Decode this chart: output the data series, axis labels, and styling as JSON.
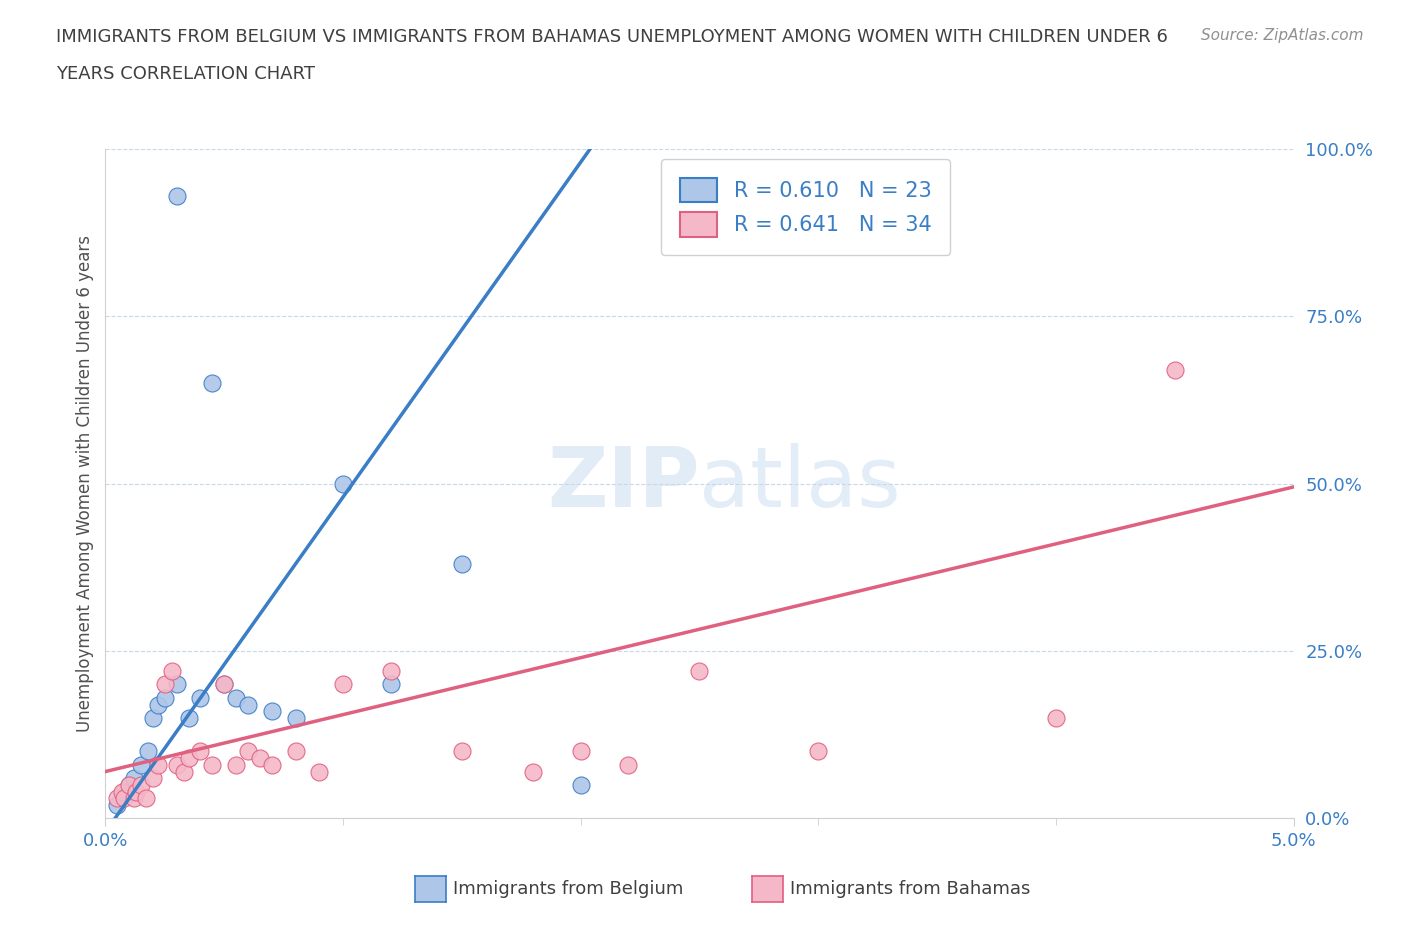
{
  "title_line1": "IMMIGRANTS FROM BELGIUM VS IMMIGRANTS FROM BAHAMAS UNEMPLOYMENT AMONG WOMEN WITH CHILDREN UNDER 6",
  "title_line2": "YEARS CORRELATION CHART",
  "source": "Source: ZipAtlas.com",
  "ylabel": "Unemployment Among Women with Children Under 6 years",
  "xlim": [
    0.0,
    5.0
  ],
  "ylim": [
    0.0,
    100.0
  ],
  "yticks": [
    0.0,
    25.0,
    50.0,
    75.0,
    100.0
  ],
  "ytick_labels": [
    "0.0%",
    "25.0%",
    "50.0%",
    "75.0%",
    "100.0%"
  ],
  "watermark": "ZIPatlas",
  "legend_belgium_R": 0.61,
  "legend_belgium_N": 23,
  "legend_bahamas_R": 0.641,
  "legend_bahamas_N": 34,
  "belgium_color": "#aec6e8",
  "bahamas_color": "#f4b8c8",
  "belgium_line_color": "#3a7ec6",
  "bahamas_line_color": "#e06080",
  "belgium_scatter_x": [
    0.3,
    0.05,
    0.08,
    0.1,
    0.12,
    0.15,
    0.18,
    0.2,
    0.22,
    0.25,
    0.3,
    0.35,
    0.4,
    0.45,
    0.5,
    0.55,
    0.6,
    0.7,
    0.8,
    1.0,
    1.2,
    1.5,
    2.0
  ],
  "belgium_scatter_y": [
    93.0,
    2.0,
    4.0,
    5.0,
    6.0,
    8.0,
    10.0,
    15.0,
    17.0,
    18.0,
    20.0,
    15.0,
    18.0,
    65.0,
    20.0,
    18.0,
    17.0,
    16.0,
    15.0,
    50.0,
    20.0,
    38.0,
    5.0
  ],
  "bahamas_scatter_x": [
    0.05,
    0.07,
    0.08,
    0.1,
    0.12,
    0.13,
    0.15,
    0.17,
    0.2,
    0.22,
    0.25,
    0.28,
    0.3,
    0.33,
    0.35,
    0.4,
    0.45,
    0.5,
    0.55,
    0.6,
    0.65,
    0.7,
    0.8,
    0.9,
    1.0,
    1.2,
    1.5,
    1.8,
    2.0,
    2.2,
    2.5,
    3.0,
    4.0,
    4.5
  ],
  "bahamas_scatter_y": [
    3.0,
    4.0,
    3.0,
    5.0,
    3.0,
    4.0,
    5.0,
    3.0,
    6.0,
    8.0,
    20.0,
    22.0,
    8.0,
    7.0,
    9.0,
    10.0,
    8.0,
    20.0,
    8.0,
    10.0,
    9.0,
    8.0,
    10.0,
    7.0,
    20.0,
    22.0,
    10.0,
    7.0,
    10.0,
    8.0,
    22.0,
    10.0,
    15.0,
    67.0
  ],
  "background_color": "#ffffff",
  "grid_color": "#c8d8e8",
  "title_color": "#404040",
  "source_color": "#909090",
  "bel_reg_slope": 50.0,
  "bel_reg_intercept": -2.0,
  "bah_reg_slope": 8.5,
  "bah_reg_intercept": 7.0
}
